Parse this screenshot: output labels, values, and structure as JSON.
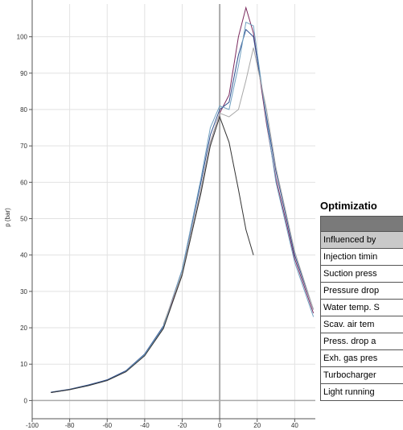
{
  "chart_data": {
    "type": "line",
    "ylabel": "p (bar)",
    "x": [
      -90,
      -80,
      -70,
      -60,
      -50,
      -40,
      -30,
      -20,
      -10,
      -5,
      0,
      5,
      10,
      14,
      18,
      25,
      30,
      40,
      50
    ],
    "series": [
      {
        "color": "#7b2a5e",
        "values": [
          2.2,
          3,
          4.2,
          5.6,
          8,
          12.5,
          20,
          35,
          58,
          71,
          79,
          84,
          100,
          108,
          101,
          76,
          61,
          39,
          24
        ]
      },
      {
        "color": "#2c4d8e",
        "values": [
          2.3,
          3.1,
          4.3,
          5.7,
          8.2,
          12.8,
          20.5,
          36,
          60,
          73,
          80,
          82,
          95,
          102,
          100,
          78,
          63,
          40,
          25
        ]
      },
      {
        "color": "#6f9fc0",
        "values": [
          2.2,
          3,
          4.1,
          5.5,
          8,
          12.6,
          20.2,
          36,
          61,
          75,
          81,
          80,
          92,
          104,
          103,
          77,
          60,
          38,
          23
        ]
      },
      {
        "color": "#a8a8a8",
        "values": [
          null,
          null,
          null,
          null,
          null,
          null,
          21,
          35,
          58,
          71,
          79,
          78,
          80,
          88,
          97,
          80,
          64,
          41,
          25
        ]
      },
      {
        "color": "#333333",
        "values": [
          2.2,
          3,
          4.1,
          5.5,
          7.9,
          12.3,
          19.8,
          34.5,
          57,
          70,
          78,
          71,
          58,
          47,
          40,
          null,
          null,
          null,
          null
        ]
      }
    ],
    "xlim": [
      -100,
      51
    ],
    "ylim": [
      -5,
      109
    ],
    "xticks": [
      -100,
      -80,
      -60,
      -40,
      -20,
      0,
      20,
      40
    ],
    "yticks": [
      0,
      10,
      20,
      30,
      40,
      50,
      60,
      70,
      80,
      90,
      100
    ],
    "grid": true
  },
  "table": {
    "title": "Optimizatio",
    "rows": [
      "Influenced by",
      "Injection timin",
      "Suction press",
      "Pressure drop",
      "Water temp. S",
      "Scav. air tem",
      "Press. drop a",
      "Exh. gas pres",
      "Turbocharger",
      "Light running"
    ]
  }
}
